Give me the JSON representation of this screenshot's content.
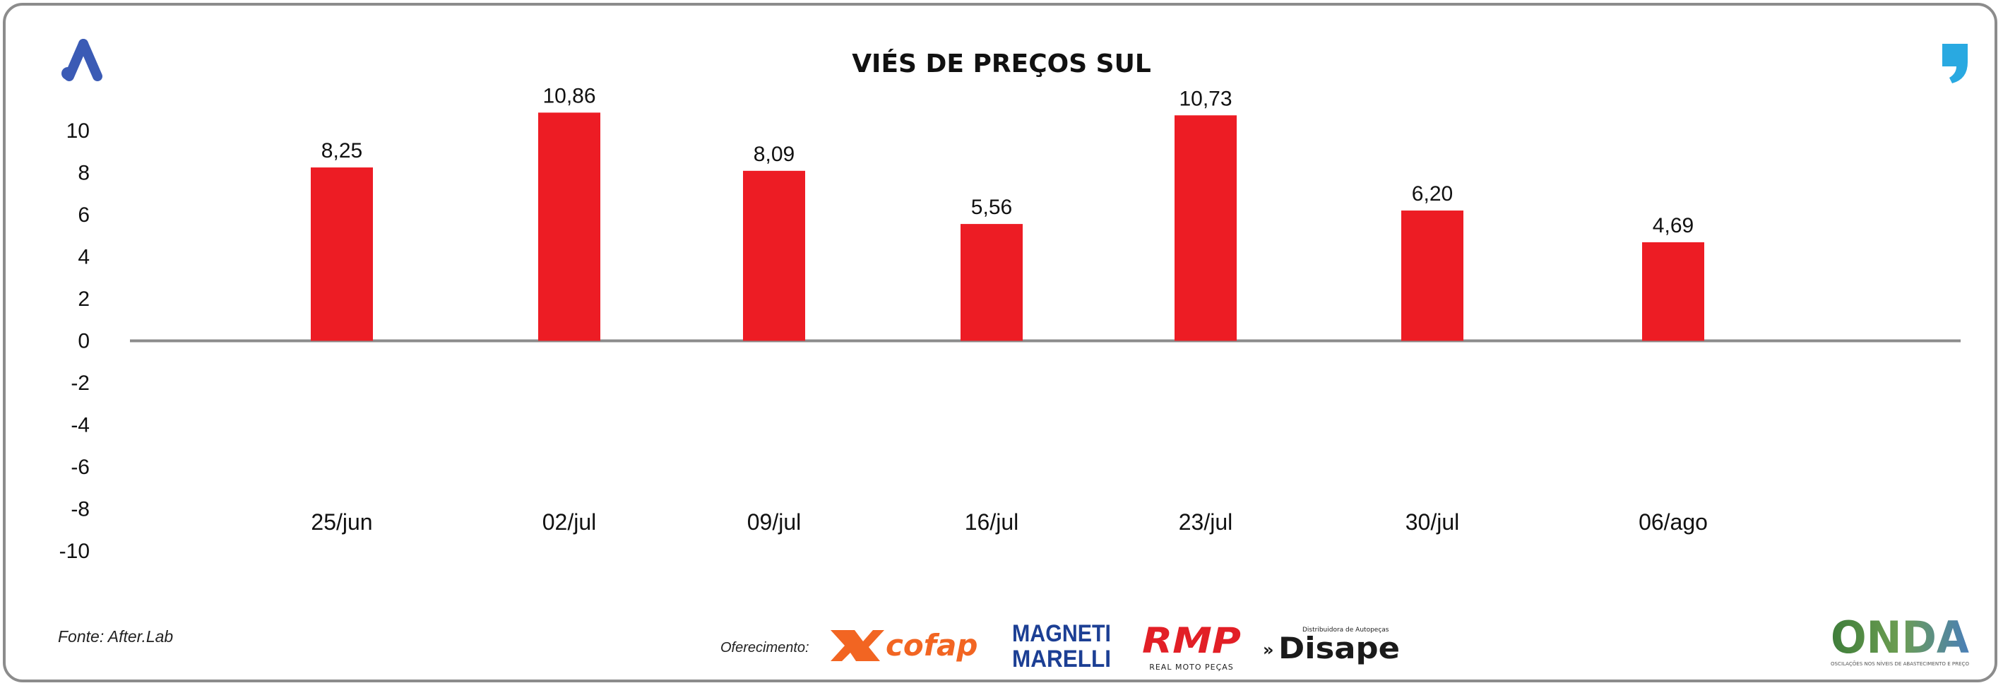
{
  "chart_data": {
    "type": "bar",
    "title": "VIÉS DE PREÇOS SUL",
    "xlabel": "",
    "ylabel": "",
    "categories": [
      "25/jun",
      "02/jul",
      "09/jul",
      "16/jul",
      "23/jul",
      "30/jul",
      "06/ago"
    ],
    "series": [
      {
        "values": [
          8.25,
          10.86,
          8.09,
          5.56,
          10.73,
          6.2,
          4.69
        ]
      }
    ],
    "data_labels": [
      "8,25",
      "10,86",
      "8,09",
      "5,56",
      "10,73",
      "6,20",
      "4,69"
    ],
    "ylim": [
      -10,
      10
    ],
    "yticks": [
      10,
      8,
      6,
      4,
      2,
      0,
      -2,
      -4,
      -6,
      -8,
      -10
    ],
    "grid": false,
    "legend": "none",
    "bar_color": "#ed1c24",
    "axis_color": "#8c8c8c"
  },
  "footer": {
    "source": "Fonte: After.Lab",
    "sponsor_label": "Oferecimento:",
    "sponsors": [
      "cofap",
      "MAGNETI MARELLI",
      "RMP",
      "Disape"
    ],
    "rmp_tagline": "REAL MOTO PEÇAS",
    "disape_tagline": "Distribuidora de Autopeças",
    "onda_name": "ONDA",
    "onda_tagline": "OSCILAÇÕES NOS NÍVEIS DE ABASTECIMENTO E PREÇO"
  },
  "logos": {
    "left": "after-lab-logo-icon",
    "right": "quote-mark-icon",
    "left_color": "#3b5bb5",
    "right_color": "#29a9e1"
  }
}
